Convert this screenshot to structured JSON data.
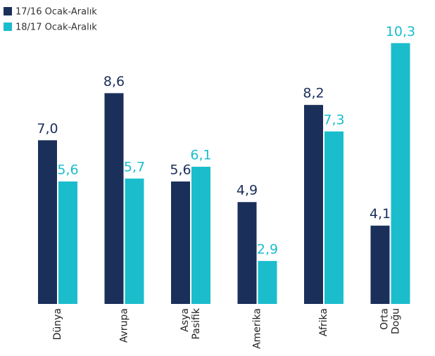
{
  "chart_data": {
    "type": "bar",
    "categories": [
      "Dünya",
      "Avrupa",
      [
        "Asya",
        "Pasifik"
      ],
      "Amerika",
      "Afrika",
      [
        "Orta",
        "Doğu"
      ]
    ],
    "series": [
      {
        "name": "17/16 Ocak-Aralık",
        "color": "#1b2f5b",
        "values": [
          7.0,
          8.6,
          5.6,
          4.9,
          8.2,
          4.1
        ],
        "value_labels": [
          "7,0",
          "8,6",
          "5,6",
          "4,9",
          "8,2",
          "4,1"
        ]
      },
      {
        "name": "18/17 Ocak-Aralık",
        "color": "#1bbdcd",
        "values": [
          5.6,
          5.7,
          6.1,
          2.9,
          7.3,
          10.3
        ],
        "value_labels": [
          "5,6",
          "5,7",
          "6,1",
          "2,9",
          "7,3",
          "10,3"
        ]
      }
    ],
    "ylim": [
      1.44,
      11
    ]
  }
}
